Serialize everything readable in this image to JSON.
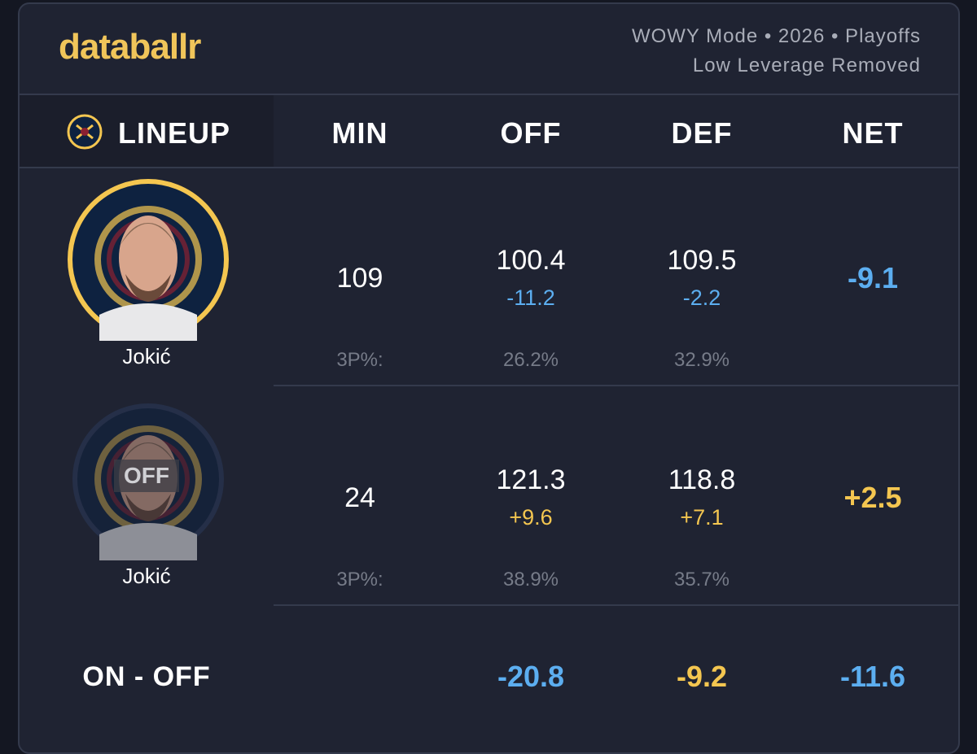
{
  "header": {
    "brand": "databallr",
    "subtitle_lines": [
      "WOWY Mode • 2026 • Playoffs",
      "Low Leverage Removed"
    ]
  },
  "table": {
    "columns": [
      "LINEUP",
      "MIN",
      "OFF",
      "DEF",
      "NET"
    ],
    "rows": [
      {
        "player": "Jokić",
        "min": "109",
        "off": "100.4",
        "off_diff": "-11.2",
        "def": "109.5",
        "def_diff": "-2.2",
        "net": "-9.1",
        "shooting_label": "3P%:",
        "off_3p": "26.2%",
        "def_3p": "32.9%"
      },
      {
        "player": "Jokić",
        "status": "OFF",
        "min": "24",
        "off": "121.3",
        "off_diff": "+9.6",
        "def": "118.8",
        "def_diff": "+7.1",
        "net": "+2.5",
        "shooting_label": "3P%:",
        "off_3p": "38.9%",
        "def_3p": "35.7%"
      }
    ],
    "footer": {
      "label": "ON - OFF",
      "off": "-20.8",
      "def": "-9.2",
      "net": "-11.6"
    }
  }
}
